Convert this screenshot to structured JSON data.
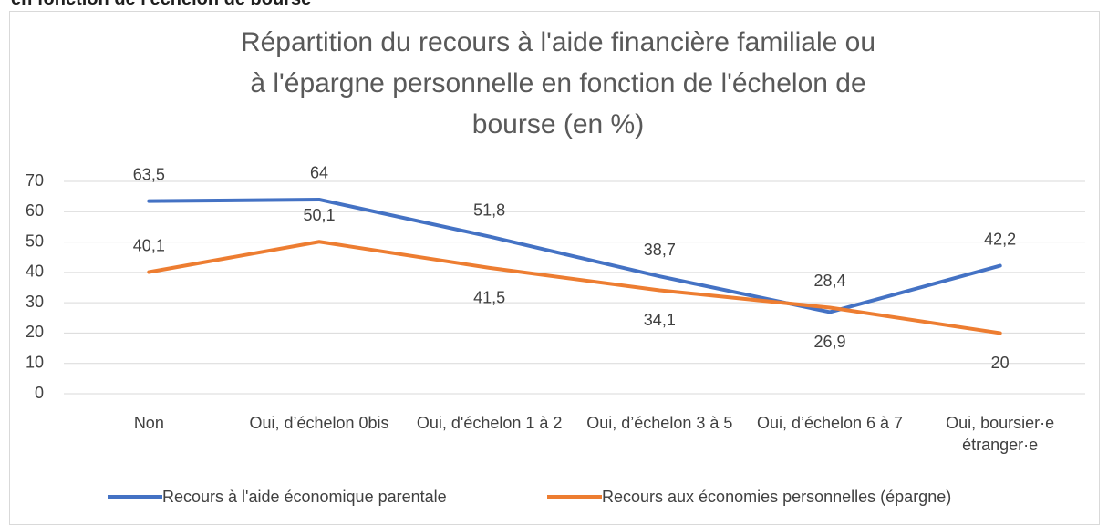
{
  "page_heading": "en fonction de l'échelon de bourse",
  "chart_data": {
    "type": "line",
    "title": "Répartition du recours à l'aide financière familiale ou à l'épargne personnelle en fonction de l'échelon de bourse (en %)",
    "categories": [
      "Non",
      "Oui, d’échelon 0bis",
      "Oui, d'échelon 1 à 2",
      "Oui, d’échelon 3 à 5",
      "Oui, d’échelon 6 à 7",
      "Oui, boursier·e étranger·e"
    ],
    "series": [
      {
        "name": "Recours à l'aide économique parentale",
        "color": "#4472c4",
        "values": [
          63.5,
          64,
          51.8,
          38.7,
          26.9,
          42.2
        ],
        "value_labels": [
          "63,5",
          "64",
          "51,8",
          "38,7",
          "26,9",
          "42,2"
        ]
      },
      {
        "name": "Recours aux économies personnelles (épargne)",
        "color": "#ed7d31",
        "values": [
          40.1,
          50.1,
          41.5,
          34.1,
          28.4,
          20
        ],
        "value_labels": [
          "40,1",
          "50,1",
          "41,5",
          "34,1",
          "28,4",
          "20"
        ]
      }
    ],
    "ylim": [
      0,
      70
    ],
    "yticks": [
      0,
      10,
      20,
      30,
      40,
      50,
      60,
      70
    ],
    "grid": true,
    "legend": "bottom"
  }
}
